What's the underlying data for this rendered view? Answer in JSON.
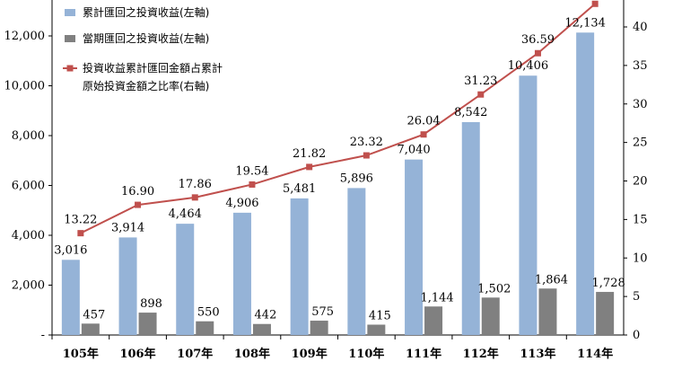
{
  "chart_data": {
    "type": "bar",
    "categories": [
      "105年",
      "106年",
      "107年",
      "108年",
      "109年",
      "110年",
      "111年",
      "112年",
      "113年",
      "114年"
    ],
    "series": [
      {
        "name": "累計匯回之投資收益(左軸)",
        "type": "bar",
        "axis": "left",
        "color": "#95B3D7",
        "values": [
          3016,
          3914,
          4464,
          4906,
          5481,
          5896,
          7040,
          8542,
          10406,
          12134
        ],
        "labels": [
          "3,016",
          "3,914",
          "4,464",
          "4,906",
          "5,481",
          "5,896",
          "7,040",
          "8,542",
          "10,406",
          "12,134"
        ]
      },
      {
        "name": "當期匯回之投資收益(左軸)",
        "type": "bar",
        "axis": "left",
        "color": "#808080",
        "values": [
          457,
          898,
          550,
          442,
          575,
          415,
          1144,
          1502,
          1864,
          1728
        ],
        "labels": [
          "457",
          "898",
          "550",
          "442",
          "575",
          "415",
          "1,144",
          "1,502",
          "1,864",
          "1,728"
        ]
      },
      {
        "name": "投資收益累計匯回金額占累計原始投資金額之比率(右軸)",
        "name_lines": [
          "投資收益累計匯回金額占累計",
          "原始投資金額之比率(右軸)"
        ],
        "type": "line",
        "axis": "right",
        "color": "#C0504D",
        "values": [
          13.22,
          16.9,
          17.86,
          19.54,
          21.82,
          23.32,
          26.04,
          31.23,
          36.59,
          43
        ],
        "labels": [
          "13.22",
          "16.90",
          "17.86",
          "19.54",
          "21.82",
          "23.32",
          "26.04",
          "31.23",
          "36.59",
          ""
        ]
      }
    ],
    "left_axis": {
      "ylim": [
        0,
        12000
      ],
      "ticks": [
        0,
        2000,
        4000,
        6000,
        8000,
        10000,
        12000
      ],
      "tick_labels": [
        "-",
        "2,000",
        "4,000",
        "6,000",
        "8,000",
        "10,000",
        "12,000"
      ]
    },
    "right_axis": {
      "ylim": [
        0,
        40
      ],
      "ticks": [
        0,
        5,
        10,
        15,
        20,
        25,
        30,
        35,
        40
      ],
      "tick_labels": [
        "0",
        "5",
        "10",
        "15",
        "20",
        "25",
        "30",
        "35",
        "40"
      ]
    },
    "legend_position": "top-left",
    "grid": false
  }
}
